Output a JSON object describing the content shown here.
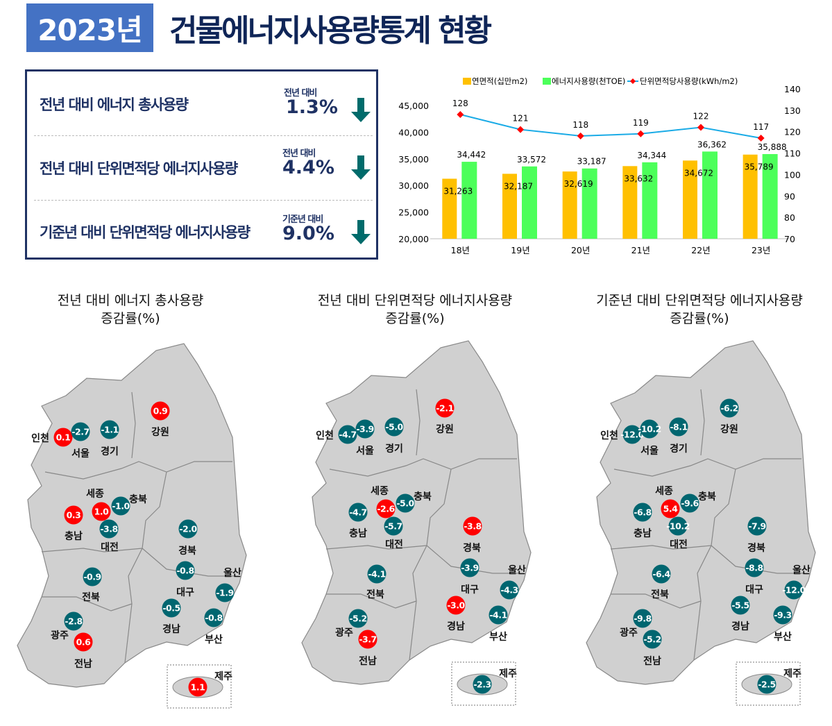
{
  "header": {
    "year": "2023년",
    "title": "건물에너지사용량통계 현황"
  },
  "summary": [
    {
      "label": "전년 대비 에너지 총사용량",
      "caption": "전년 대비",
      "value": "1.3%",
      "direction": "down"
    },
    {
      "label": "전년 대비 단위면적당 에너지사용량",
      "caption": "전년 대비",
      "value": "4.4%",
      "direction": "down"
    },
    {
      "label": "기준년 대비 단위면적당 에너지사용량",
      "caption": "기준년 대비",
      "value": "9.0%",
      "direction": "down"
    }
  ],
  "colors": {
    "title": "#0f2557",
    "year_bg": "#4472c4",
    "arrow": "#006b6b",
    "bar_area": "#ffc000",
    "bar_energy": "#4cff5a",
    "line": "#1aabe6",
    "marker": "#ff0000",
    "increase": "#ff0000",
    "decrease": "#006670",
    "map_fill": "#d0d0d0"
  },
  "chart_data": {
    "type": "bar+line",
    "categories": [
      "18년",
      "19년",
      "20년",
      "21년",
      "22년",
      "23년"
    ],
    "series": [
      {
        "name": "연면적(십만m2)",
        "type": "bar",
        "axis": "left",
        "values": [
          31263,
          32187,
          32619,
          33632,
          34672,
          35789
        ],
        "labels": [
          "31,263",
          "32,187",
          "32,619",
          "33,632",
          "34,672",
          "35,789"
        ]
      },
      {
        "name": "에너지사용량(천TOE)",
        "type": "bar",
        "axis": "left",
        "values": [
          34442,
          33572,
          33187,
          34344,
          36362,
          35888
        ],
        "labels": [
          "34,442",
          "33,572",
          "33,187",
          "34,344",
          "36,362",
          "35,888"
        ]
      },
      {
        "name": "단위면적당사용량(kWh/m2)",
        "type": "line",
        "axis": "right",
        "values": [
          128,
          121,
          118,
          119,
          122,
          117
        ],
        "labels": [
          "128",
          "121",
          "118",
          "119",
          "122",
          "117"
        ]
      }
    ],
    "left_axis": {
      "range": [
        20000,
        45000
      ],
      "ticks": [
        "20,000",
        "25,000",
        "30,000",
        "35,000",
        "40,000",
        "45,000"
      ]
    },
    "right_axis": {
      "range": [
        70,
        140
      ],
      "ticks": [
        "70",
        "80",
        "90",
        "100",
        "110",
        "120",
        "130",
        "140"
      ]
    },
    "legend": "top",
    "grid": false
  },
  "maps": [
    {
      "title": "전년 대비 에너지 총사용량",
      "subtitle": "증감률(%)",
      "values": {
        "인천": "0.1",
        "서울": "-2.7",
        "경기": "-1.1",
        "강원": "0.9",
        "세종": "1.0",
        "충북": "-1.0",
        "충남": "0.3",
        "대전": "-3.8",
        "경북": "-2.0",
        "대구": "-0.8",
        "울산": "-1.9",
        "전북": "-0.9",
        "경남": "-0.5",
        "부산": "-0.8",
        "광주": "-2.8",
        "전남": "0.6",
        "제주": "1.1"
      }
    },
    {
      "title": "전년 대비 단위면적당 에너지사용량",
      "subtitle": "증감률(%)",
      "values": {
        "인천": "-4.7",
        "서울": "-3.9",
        "경기": "-5.0",
        "강원": "-2.1",
        "세종": "-2.6",
        "충북": "-5.0",
        "충남": "-4.7",
        "대전": "-5.7",
        "경북": "-3.8",
        "대구": "-3.9",
        "울산": "-4.3",
        "전북": "-4.1",
        "경남": "-3.0",
        "부산": "-4.1",
        "광주": "-5.2",
        "전남": "-3.7",
        "제주": "-2.3"
      },
      "highlighted": [
        "강원",
        "세종",
        "경북",
        "경남",
        "전남"
      ]
    },
    {
      "title": "기준년 대비 단위면적당 에너지사용량",
      "subtitle": "증감률(%)",
      "values": {
        "인천": "-12.0",
        "서울": "-10.2",
        "경기": "-8.1",
        "강원": "-6.2",
        "세종": "5.4",
        "충북": "-9.6",
        "충남": "-6.8",
        "대전": "-10.2",
        "경북": "-7.9",
        "대구": "-8.8",
        "울산": "-12.0",
        "전북": "-6.4",
        "경남": "-5.5",
        "부산": "-9.3",
        "광주": "-9.8",
        "전남": "-5.2",
        "제주": "-2.5"
      }
    }
  ],
  "regions": [
    "인천",
    "서울",
    "경기",
    "강원",
    "세종",
    "충북",
    "충남",
    "대전",
    "경북",
    "대구",
    "울산",
    "전북",
    "경남",
    "부산",
    "광주",
    "전남",
    "제주"
  ]
}
